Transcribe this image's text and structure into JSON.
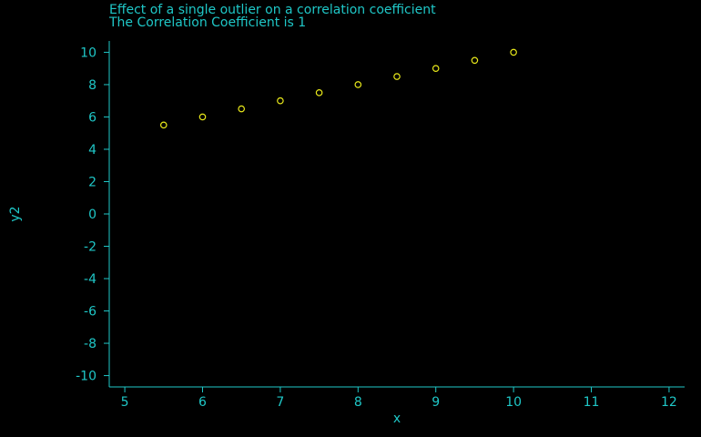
{
  "chart_data": {
    "type": "scatter",
    "title": "Effect of a single outlier on a correlation coefficient",
    "subtitle": "The Correlation Coefficient is 1",
    "xlabel": "x",
    "ylabel": "y2",
    "xlim": [
      4.8,
      12.2
    ],
    "ylim": [
      -10.7,
      10.7
    ],
    "xticks": [
      5,
      6,
      7,
      8,
      9,
      10,
      11,
      12
    ],
    "yticks": [
      10,
      8,
      6,
      4,
      2,
      0,
      -2,
      -4,
      -6,
      -8,
      -10
    ],
    "grid": false,
    "series": [
      {
        "x": [
          5.5,
          6,
          6.5,
          7,
          7.5,
          8,
          8.5,
          9,
          9.5,
          10
        ],
        "y": [
          5.5,
          6,
          6.5,
          7,
          7.5,
          8,
          8.5,
          9,
          9.5,
          10
        ]
      }
    ],
    "colors": {
      "background": "#000000",
      "axis": "#1fc7c7",
      "text": "#1fc7c7",
      "marker": "#e8e81a"
    },
    "marker": "open-circle"
  }
}
